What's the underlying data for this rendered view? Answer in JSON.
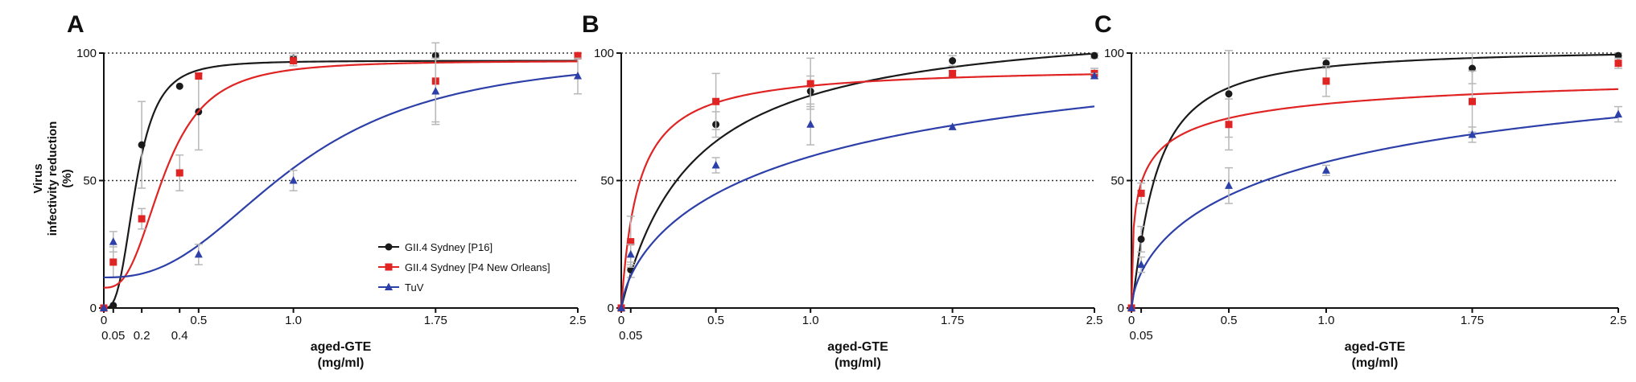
{
  "figure": {
    "ylabel_lines": [
      "Virus",
      "infectivity reduction",
      "(%)"
    ],
    "xlabel_lines": [
      "aged-GTE",
      "(mg/ml)"
    ]
  },
  "colors": {
    "sydney_p16": "#1a1a1a",
    "sydney_p4": "#e02424",
    "tuv": "#2d3fa8",
    "errorbar": "#b8b8b8",
    "refline": "#333333"
  },
  "chart_data": [
    {
      "type": "scatter",
      "panel": "A",
      "xlim": [
        0,
        2.5
      ],
      "ylim": [
        0,
        100
      ],
      "xticks": [
        0,
        0.05,
        0.2,
        0.4,
        0.5,
        1.0,
        1.75,
        2.5
      ],
      "yticks": [
        0,
        50,
        100
      ],
      "reference_lines": [
        50,
        100
      ],
      "xlabel": "aged-GTE (mg/ml)",
      "ylabel": "Virus infectivity reduction (%)",
      "legend": [
        {
          "name": "GII.4 Sydney [P16]",
          "marker": "circle",
          "color": "#1a1a1a"
        },
        {
          "name": "GII.4 Sydney [P4 New Orleans]",
          "marker": "square",
          "color": "#e02424"
        },
        {
          "name": "TuV",
          "marker": "triangle",
          "color": "#2d3fa8"
        }
      ],
      "series": [
        {
          "name": "GII.4 Sydney [P16]",
          "marker": "circle",
          "color": "#1a1a1a",
          "x": [
            0,
            0.05,
            0.2,
            0.4,
            0.5,
            1.0,
            1.75,
            2.5
          ],
          "y": [
            0,
            1,
            64,
            87,
            77,
            98,
            99,
            99
          ],
          "err": [
            0,
            0,
            17,
            0,
            15,
            2,
            1,
            1
          ],
          "fit": {
            "model": "hill",
            "top": 97,
            "ec50": 0.17,
            "n": 3.0,
            "bottom": 0
          }
        },
        {
          "name": "GII.4 Sydney [P4 New Orleans]",
          "marker": "square",
          "color": "#e02424",
          "x": [
            0,
            0.05,
            0.2,
            0.4,
            0.5,
            1.0,
            1.75,
            2.5
          ],
          "y": [
            0,
            18,
            35,
            53,
            91,
            97,
            89,
            99
          ],
          "err": [
            0,
            6,
            4,
            7,
            0,
            2,
            16,
            1
          ],
          "fit": {
            "model": "hill",
            "top": 97,
            "ec50": 0.32,
            "n": 2.8,
            "bottom": 8
          }
        },
        {
          "name": "TuV",
          "marker": "triangle",
          "color": "#2d3fa8",
          "x": [
            0,
            0.05,
            0.5,
            1.0,
            1.75,
            2.5
          ],
          "y": [
            0,
            26,
            21,
            50,
            85,
            91
          ],
          "err": [
            0,
            4,
            4,
            4,
            13,
            7
          ],
          "fit": {
            "model": "hill",
            "top": 100,
            "ec50": 1.02,
            "n": 2.5,
            "bottom": 12
          }
        }
      ]
    },
    {
      "type": "scatter",
      "panel": "B",
      "xlim": [
        0,
        2.5
      ],
      "ylim": [
        0,
        100
      ],
      "xticks": [
        0,
        0.05,
        0.5,
        1.0,
        1.75,
        2.5
      ],
      "yticks": [
        0,
        50,
        100
      ],
      "reference_lines": [
        50,
        100
      ],
      "xlabel": "aged-GTE (mg/ml)",
      "series": [
        {
          "name": "GII.4 Sydney [P16]",
          "marker": "circle",
          "color": "#1a1a1a",
          "x": [
            0,
            0.05,
            0.5,
            1.0,
            1.75,
            2.5
          ],
          "y": [
            0,
            15,
            72,
            85,
            97,
            99
          ],
          "err": [
            0,
            3,
            5,
            6,
            2,
            1
          ],
          "fit": {
            "model": "hill",
            "top": 115,
            "ec50": 0.38,
            "n": 1.0,
            "bottom": 0
          }
        },
        {
          "name": "GII.4 Sydney [P4 New Orleans]",
          "marker": "square",
          "color": "#e02424",
          "x": [
            0,
            0.05,
            0.5,
            1.0,
            1.75,
            2.5
          ],
          "y": [
            0,
            26,
            81,
            88,
            92,
            92
          ],
          "err": [
            0,
            10,
            11,
            10,
            1,
            2
          ],
          "fit": {
            "model": "hill",
            "top": 95,
            "ec50": 0.09,
            "n": 1.0,
            "bottom": 0
          }
        },
        {
          "name": "TuV",
          "marker": "triangle",
          "color": "#2d3fa8",
          "x": [
            0,
            0.05,
            0.5,
            1.0,
            1.75,
            2.5
          ],
          "y": [
            0,
            21,
            56,
            72,
            71,
            91
          ],
          "err": [
            0,
            4,
            3,
            8,
            0,
            1
          ],
          "fit": {
            "model": "hill",
            "top": 125,
            "ec50": 1.15,
            "n": 0.7,
            "bottom": 0
          }
        }
      ]
    },
    {
      "type": "scatter",
      "panel": "C",
      "xlim": [
        0,
        2.5
      ],
      "ylim": [
        0,
        100
      ],
      "xticks": [
        0,
        0.05,
        0.5,
        1.0,
        1.75,
        2.5
      ],
      "yticks": [
        0,
        50,
        100
      ],
      "reference_lines": [
        50,
        100
      ],
      "xlabel": "aged-GTE (mg/ml)",
      "series": [
        {
          "name": "GII.4 Sydney [P16]",
          "marker": "circle",
          "color": "#1a1a1a",
          "x": [
            0,
            0.05,
            0.5,
            1.0,
            1.75,
            2.5
          ],
          "y": [
            0,
            27,
            84,
            96,
            94,
            99
          ],
          "err": [
            0,
            5,
            17,
            2,
            6,
            1
          ],
          "fit": {
            "model": "hill",
            "top": 102,
            "ec50": 0.12,
            "n": 1.2,
            "bottom": 0
          }
        },
        {
          "name": "GII.4 Sydney [P4 New Orleans]",
          "marker": "square",
          "color": "#e02424",
          "x": [
            0,
            0.05,
            0.5,
            1.0,
            1.75,
            2.5
          ],
          "y": [
            0,
            45,
            72,
            89,
            81,
            96
          ],
          "err": [
            0,
            4,
            10,
            6,
            12,
            2
          ],
          "fit": {
            "model": "hill",
            "top": 98,
            "ec50": 0.05,
            "n": 0.5,
            "bottom": 0
          }
        },
        {
          "name": "TuV",
          "marker": "triangle",
          "color": "#2d3fa8",
          "x": [
            0,
            0.05,
            0.5,
            1.0,
            1.75,
            2.5
          ],
          "y": [
            0,
            17,
            48,
            54,
            68,
            76
          ],
          "err": [
            0,
            3,
            7,
            2,
            3,
            3
          ],
          "fit": {
            "model": "hill",
            "top": 120,
            "ec50": 1.15,
            "n": 0.65,
            "bottom": 0
          }
        }
      ]
    }
  ]
}
